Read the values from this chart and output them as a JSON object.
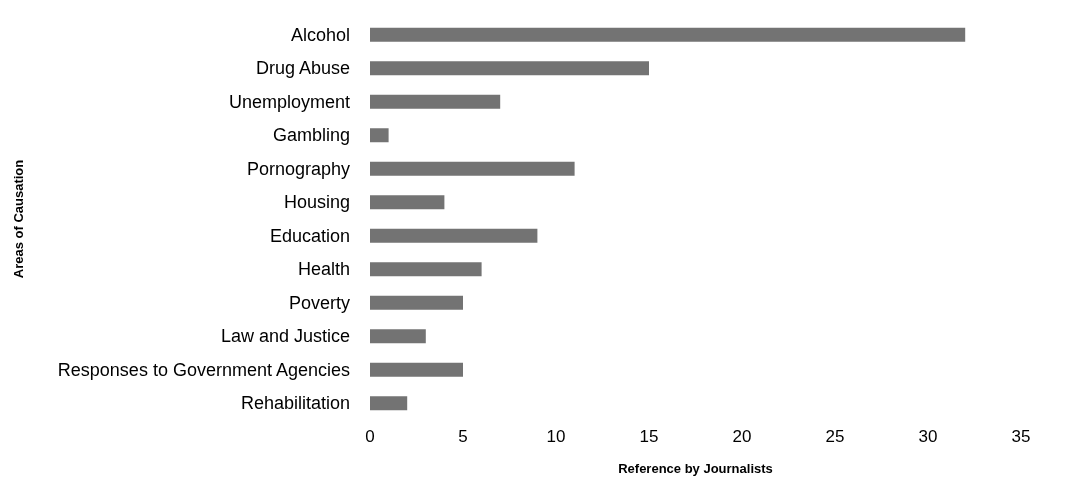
{
  "chart_data": {
    "type": "bar",
    "orientation": "horizontal",
    "xlabel": "Reference by Journalists",
    "ylabel": "Areas of Causation",
    "categories": [
      "Alcohol",
      "Drug Abuse",
      "Unemployment",
      "Gambling",
      "Pornography",
      "Housing",
      "Education",
      "Health",
      "Poverty",
      "Law and Justice",
      "Responses to Government Agencies",
      "Rehabilitation"
    ],
    "values": [
      32,
      15,
      7,
      1,
      11,
      4,
      9,
      6,
      5,
      3,
      5,
      2
    ],
    "color": "#737373",
    "xlim": [
      0,
      35
    ],
    "xticks": [
      0,
      5,
      10,
      15,
      20,
      25,
      30,
      35
    ],
    "grid": false
  }
}
